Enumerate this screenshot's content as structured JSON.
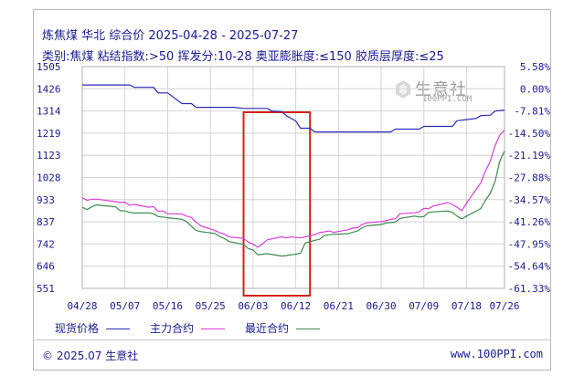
{
  "title": "炼焦煤 华北 综合价 2025-04-28 - 2025-07-27",
  "subtitle": "类别:焦煤 粘结指数:>50 挥发分:10-28 奥亚膨胀度:≤150 胶质层厚度:≤25",
  "watermark": {
    "text": "生意社",
    "url": "100PPI.COM"
  },
  "legend": [
    {
      "label": "现货价格",
      "color": "#2a2ab8"
    },
    {
      "label": "主力合约",
      "color": "#d63fd6"
    },
    {
      "label": "最近合约",
      "color": "#3a8a4a"
    }
  ],
  "footer": {
    "copyright": "© 2025.07 生意社",
    "site": "www.100PPI.com"
  },
  "colors": {
    "left_axis_top": "#cc2222",
    "right_axis_top": "#cc2222",
    "axis_text": "#1a1a8c",
    "highlight_box": "#d62020"
  },
  "chart_data": {
    "type": "line",
    "x_ticks": [
      "04/28",
      "05/07",
      "05/16",
      "05/25",
      "06/03",
      "06/12",
      "06/21",
      "06/30",
      "07/09",
      "07/18",
      "07/26"
    ],
    "y_left_ticks": [
      "1505",
      "1426",
      "1314",
      "1219",
      "1123",
      "1028",
      "933",
      "837",
      "742",
      "646",
      "551"
    ],
    "y_right_ticks": [
      "5.58%",
      "0.00%",
      "-7.81%",
      "-14.50%",
      "-21.19%",
      "-27.88%",
      "-34.57%",
      "-41.26%",
      "-47.95%",
      "-54.64%",
      "-61.33%"
    ],
    "ylim": [
      551,
      1505
    ],
    "highlight_range": [
      "06/01",
      "06/15"
    ],
    "series": [
      {
        "name": "现货价格",
        "points": [
          [
            "04/28",
            1426
          ],
          [
            "05/01",
            1426
          ],
          [
            "05/08",
            1426
          ],
          [
            "05/09",
            1416
          ],
          [
            "05/13",
            1416
          ],
          [
            "05/14",
            1392
          ],
          [
            "05/16",
            1392
          ],
          [
            "05/19",
            1346
          ],
          [
            "05/21",
            1346
          ],
          [
            "05/22",
            1330
          ],
          [
            "05/30",
            1330
          ],
          [
            "06/01",
            1325
          ],
          [
            "06/06",
            1325
          ],
          [
            "06/07",
            1314
          ],
          [
            "06/09",
            1312
          ],
          [
            "06/10",
            1294
          ],
          [
            "06/12",
            1271
          ],
          [
            "06/13",
            1240
          ],
          [
            "06/15",
            1240
          ],
          [
            "06/16",
            1224
          ],
          [
            "07/02",
            1224
          ],
          [
            "07/03",
            1236
          ],
          [
            "07/08",
            1236
          ],
          [
            "07/09",
            1248
          ],
          [
            "07/15",
            1248
          ],
          [
            "07/16",
            1272
          ],
          [
            "07/20",
            1282
          ],
          [
            "07/21",
            1294
          ],
          [
            "07/23",
            1296
          ],
          [
            "07/24",
            1314
          ],
          [
            "07/26",
            1318
          ]
        ]
      },
      {
        "name": "主力合约",
        "points": [
          [
            "04/28",
            942
          ],
          [
            "04/29",
            930
          ],
          [
            "04/30",
            934
          ],
          [
            "05/01",
            935
          ],
          [
            "05/05",
            924
          ],
          [
            "05/06",
            920
          ],
          [
            "05/07",
            922
          ],
          [
            "05/08",
            908
          ],
          [
            "05/09",
            912
          ],
          [
            "05/12",
            900
          ],
          [
            "05/13",
            903
          ],
          [
            "05/14",
            882
          ],
          [
            "05/15",
            884
          ],
          [
            "05/16",
            872
          ],
          [
            "05/19",
            871
          ],
          [
            "05/20",
            862
          ],
          [
            "05/21",
            856
          ],
          [
            "05/22",
            835
          ],
          [
            "05/23",
            820
          ],
          [
            "05/26",
            800
          ],
          [
            "05/27",
            790
          ],
          [
            "05/28",
            784
          ],
          [
            "05/29",
            772
          ],
          [
            "05/30",
            770
          ],
          [
            "06/01",
            766
          ],
          [
            "06/02",
            750
          ],
          [
            "06/03",
            741
          ],
          [
            "06/04",
            728
          ],
          [
            "06/05",
            742
          ],
          [
            "06/06",
            760
          ],
          [
            "06/09",
            773
          ],
          [
            "06/10",
            768
          ],
          [
            "06/11",
            772
          ],
          [
            "06/12",
            770
          ],
          [
            "06/13",
            768
          ],
          [
            "06/16",
            782
          ],
          [
            "06/17",
            791
          ],
          [
            "06/18",
            794
          ],
          [
            "06/19",
            798
          ],
          [
            "06/20",
            792
          ],
          [
            "06/23",
            803
          ],
          [
            "06/24",
            810
          ],
          [
            "06/25",
            812
          ],
          [
            "06/26",
            826
          ],
          [
            "06/27",
            833
          ],
          [
            "06/30",
            838
          ],
          [
            "07/01",
            842
          ],
          [
            "07/02",
            848
          ],
          [
            "07/03",
            850
          ],
          [
            "07/04",
            872
          ],
          [
            "07/07",
            876
          ],
          [
            "07/08",
            880
          ],
          [
            "07/09",
            895
          ],
          [
            "07/10",
            894
          ],
          [
            "07/11",
            905
          ],
          [
            "07/14",
            920
          ],
          [
            "07/15",
            912
          ],
          [
            "07/16",
            900
          ],
          [
            "07/17",
            885
          ],
          [
            "07/18",
            918
          ],
          [
            "07/21",
            1005
          ],
          [
            "07/22",
            1056
          ],
          [
            "07/23",
            1098
          ],
          [
            "07/24",
            1164
          ],
          [
            "07/25",
            1210
          ],
          [
            "07/26",
            1232
          ]
        ]
      },
      {
        "name": "最近合约",
        "points": [
          [
            "04/28",
            900
          ],
          [
            "04/29",
            890
          ],
          [
            "04/30",
            902
          ],
          [
            "05/01",
            910
          ],
          [
            "05/05",
            902
          ],
          [
            "05/06",
            885
          ],
          [
            "05/07",
            884
          ],
          [
            "05/08",
            878
          ],
          [
            "05/09",
            875
          ],
          [
            "05/12",
            876
          ],
          [
            "05/13",
            872
          ],
          [
            "05/14",
            860
          ],
          [
            "05/15",
            858
          ],
          [
            "05/16",
            855
          ],
          [
            "05/19",
            848
          ],
          [
            "05/20",
            838
          ],
          [
            "05/21",
            818
          ],
          [
            "05/22",
            800
          ],
          [
            "05/23",
            795
          ],
          [
            "05/26",
            787
          ],
          [
            "05/27",
            774
          ],
          [
            "05/28",
            765
          ],
          [
            "05/29",
            752
          ],
          [
            "05/30",
            748
          ],
          [
            "06/01",
            740
          ],
          [
            "06/02",
            722
          ],
          [
            "06/03",
            716
          ],
          [
            "06/04",
            696
          ],
          [
            "06/05",
            698
          ],
          [
            "06/06",
            700
          ],
          [
            "06/09",
            690
          ],
          [
            "06/10",
            692
          ],
          [
            "06/11",
            696
          ],
          [
            "06/12",
            698
          ],
          [
            "06/13",
            702
          ],
          [
            "06/14",
            746
          ],
          [
            "06/16",
            758
          ],
          [
            "06/17",
            762
          ],
          [
            "06/18",
            778
          ],
          [
            "06/19",
            782
          ],
          [
            "06/20",
            784
          ],
          [
            "06/23",
            786
          ],
          [
            "06/24",
            792
          ],
          [
            "06/25",
            798
          ],
          [
            "06/26",
            812
          ],
          [
            "06/27",
            820
          ],
          [
            "06/30",
            826
          ],
          [
            "07/01",
            832
          ],
          [
            "07/02",
            834
          ],
          [
            "07/03",
            836
          ],
          [
            "07/04",
            852
          ],
          [
            "07/07",
            862
          ],
          [
            "07/08",
            858
          ],
          [
            "07/09",
            860
          ],
          [
            "07/10",
            878
          ],
          [
            "07/11",
            880
          ],
          [
            "07/14",
            884
          ],
          [
            "07/15",
            878
          ],
          [
            "07/16",
            862
          ],
          [
            "07/17",
            850
          ],
          [
            "07/18",
            862
          ],
          [
            "07/21",
            894
          ],
          [
            "07/22",
            930
          ],
          [
            "07/23",
            960
          ],
          [
            "07/24",
            1010
          ],
          [
            "07/25",
            1098
          ],
          [
            "07/26",
            1142
          ]
        ]
      }
    ]
  }
}
